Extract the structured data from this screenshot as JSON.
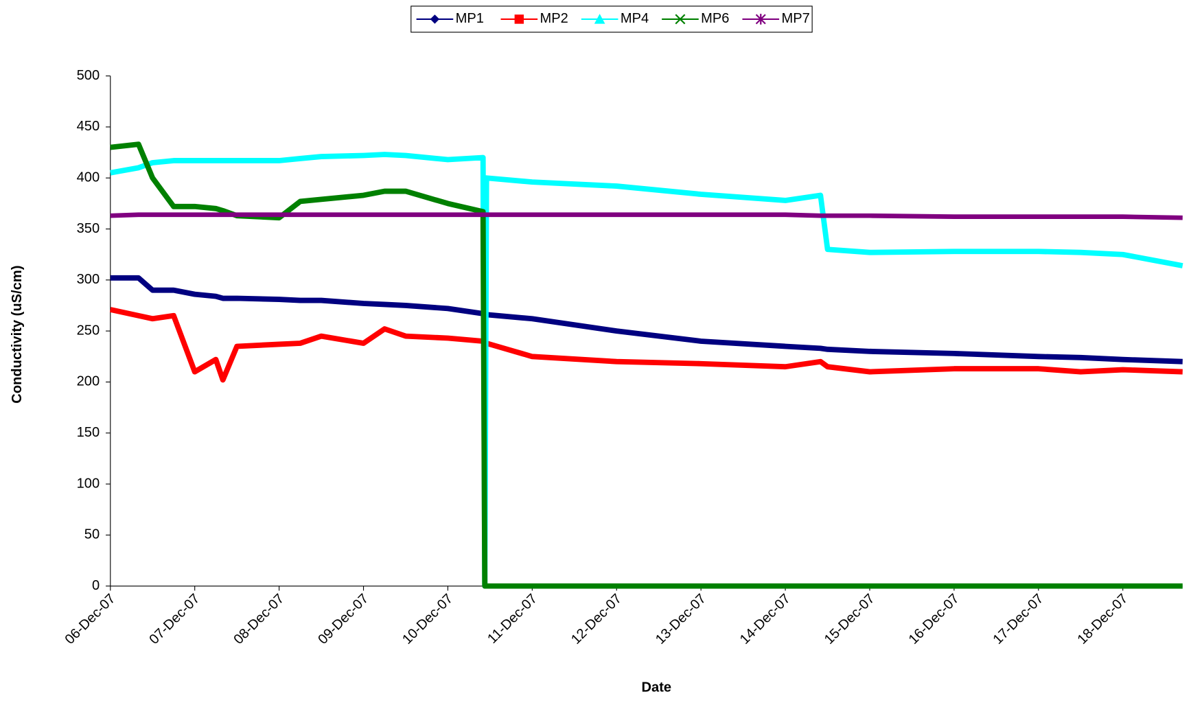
{
  "chart_data": {
    "type": "line",
    "y_label": "Conductivity (uS/cm)",
    "x_label": "Date",
    "x": [
      "06-Dec-07 00:00",
      "06-Dec-07 08:00",
      "06-Dec-07 12:00",
      "06-Dec-07 18:00",
      "07-Dec-07 00:00",
      "07-Dec-07 06:00",
      "07-Dec-07 08:00",
      "07-Dec-07 12:00",
      "08-Dec-07 00:00",
      "08-Dec-07 06:00",
      "08-Dec-07 12:00",
      "09-Dec-07 00:00",
      "09-Dec-07 06:00",
      "09-Dec-07 12:00",
      "10-Dec-07 00:00",
      "10-Dec-07 10:00",
      "10-Dec-07 10:30",
      "10-Dec-07 11:00",
      "11-Dec-07 00:00",
      "12-Dec-07 00:00",
      "13-Dec-07 00:00",
      "14-Dec-07 00:00",
      "14-Dec-07 10:00",
      "14-Dec-07 12:00",
      "15-Dec-07 00:00",
      "16-Dec-07 00:00",
      "17-Dec-07 00:00",
      "17-Dec-07 12:00",
      "18-Dec-07 00:00",
      "18-Dec-07 17:00"
    ],
    "series": [
      {
        "name": "MP1",
        "color": "#000080",
        "values": [
          302,
          302,
          290,
          290,
          286,
          284,
          282,
          282,
          281,
          280,
          280,
          277,
          276,
          275,
          272,
          267,
          266,
          266,
          262,
          250,
          240,
          235,
          233,
          232,
          230,
          228,
          225,
          224,
          222,
          220
        ]
      },
      {
        "name": "MP2",
        "color": "#ff0000",
        "values": [
          271,
          265,
          262,
          265,
          210,
          222,
          202,
          235,
          237,
          238,
          245,
          238,
          252,
          245,
          243,
          240,
          239,
          238,
          225,
          220,
          218,
          215,
          220,
          215,
          210,
          213,
          213,
          210,
          212,
          210
        ]
      },
      {
        "name": "MP4",
        "color": "#00ffff",
        "values": [
          405,
          410,
          415,
          417,
          417,
          417,
          417,
          417,
          417,
          419,
          421,
          422,
          423,
          422,
          418,
          420,
          0,
          400,
          396,
          392,
          384,
          378,
          383,
          330,
          327,
          328,
          328,
          327,
          325,
          314
        ]
      },
      {
        "name": "MP6",
        "color": "#008000",
        "values": [
          430,
          433,
          400,
          372,
          372,
          370,
          368,
          363,
          361,
          377,
          379,
          383,
          387,
          387,
          375,
          367,
          0,
          0,
          0,
          0,
          0,
          0,
          0,
          0,
          0,
          0,
          0,
          0,
          0,
          0
        ]
      },
      {
        "name": "MP7",
        "color": "#800080",
        "values": [
          363,
          364,
          364,
          364,
          364,
          364,
          364,
          364,
          364,
          364,
          364,
          364,
          364,
          364,
          364,
          364,
          364,
          364,
          364,
          364,
          364,
          364,
          363,
          363,
          363,
          362,
          362,
          362,
          362,
          361
        ]
      }
    ],
    "xlim": [
      "06-Dec-07 00:00",
      "18-Dec-07 17:00"
    ],
    "xticks": [
      "06-Dec-07",
      "07-Dec-07",
      "08-Dec-07",
      "09-Dec-07",
      "10-Dec-07",
      "11-Dec-07",
      "12-Dec-07",
      "13-Dec-07",
      "14-Dec-07",
      "15-Dec-07",
      "16-Dec-07",
      "17-Dec-07",
      "18-Dec-07"
    ],
    "ylim": [
      0,
      500
    ],
    "yticks": [
      0,
      50,
      100,
      150,
      200,
      250,
      300,
      350,
      400,
      450,
      500
    ],
    "legend": "top",
    "grid": false
  }
}
